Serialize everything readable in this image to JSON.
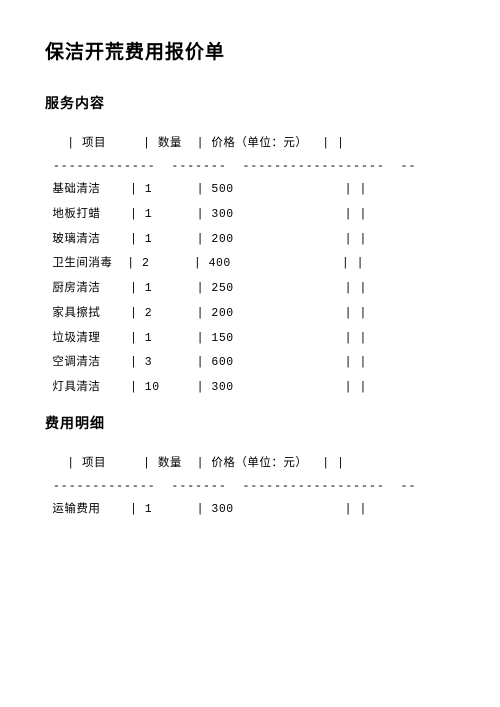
{
  "title": "保洁开荒费用报价单",
  "section1": {
    "heading": "服务内容",
    "columns": [
      "项目",
      "数量",
      "价格（单位：元）"
    ],
    "rows": [
      {
        "name": "基础清洁",
        "qty": "1",
        "price": "500"
      },
      {
        "name": "地板打蜡",
        "qty": "1",
        "price": "300"
      },
      {
        "name": "玻璃清洁",
        "qty": "1",
        "price": "200"
      },
      {
        "name": "卫生间消毒",
        "qty": "2",
        "price": "400"
      },
      {
        "name": "厨房清洁",
        "qty": "1",
        "price": "250"
      },
      {
        "name": "家具擦拭",
        "qty": "2",
        "price": "200"
      },
      {
        "name": "垃圾清理",
        "qty": "1",
        "price": "150"
      },
      {
        "name": "空调清洁",
        "qty": "3",
        "price": "600"
      },
      {
        "name": "灯具清洁",
        "qty": "10",
        "price": "300"
      }
    ]
  },
  "section2": {
    "heading": "费用明细",
    "columns": [
      "项目",
      "数量",
      "价格（单位：元）"
    ],
    "rows": [
      {
        "name": "运输费用",
        "qty": "1",
        "price": "300"
      }
    ]
  },
  "layout": {
    "col1_chars": 6,
    "col2_chars": 4,
    "col3_chars": 12
  }
}
